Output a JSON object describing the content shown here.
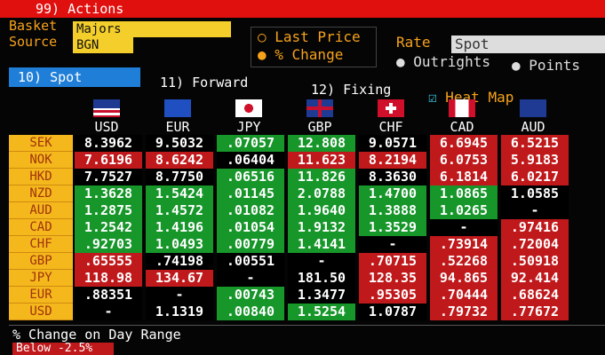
{
  "header": {
    "actions": "99) Actions",
    "basket_label": "Basket",
    "basket": "Majors",
    "source_label": "Source",
    "source": "BGN",
    "options": [
      "Last Price",
      "% Change"
    ],
    "rate_label": "Rate",
    "rate": "Spot",
    "rate_options": [
      "Outrights",
      "Points"
    ]
  },
  "tabs": [
    "10) Spot",
    "11) Forward",
    "12) Fixing"
  ],
  "heat_map_label": "Heat Map",
  "table": {
    "columns": [
      "USD",
      "EUR",
      "JPY",
      "GBP",
      "CHF",
      "CAD",
      "AUD"
    ],
    "rows": [
      {
        "label": "SEK",
        "cells": [
          "8.3962",
          "9.5032",
          ".07057",
          "12.808",
          "9.0571",
          "6.6945",
          "6.5215"
        ],
        "colors": [
          "#000000",
          "#000000",
          "#17962a",
          "#17962a",
          "#000000",
          "#c0191c",
          "#c0191c"
        ]
      },
      {
        "label": "NOK",
        "cells": [
          "7.6196",
          "8.6242",
          ".06404",
          "11.623",
          "8.2194",
          "6.0753",
          "5.9183"
        ],
        "colors": [
          "#c0191c",
          "#c0191c",
          "#000000",
          "#c0191c",
          "#c0191c",
          "#c0191c",
          "#c0191c"
        ]
      },
      {
        "label": "HKD",
        "cells": [
          "7.7527",
          "8.7750",
          ".06516",
          "11.826",
          "8.3630",
          "6.1814",
          "6.0217"
        ],
        "colors": [
          "#000000",
          "#000000",
          "#17962a",
          "#17962a",
          "#000000",
          "#c0191c",
          "#c0191c"
        ]
      },
      {
        "label": "NZD",
        "cells": [
          "1.3628",
          "1.5424",
          ".01145",
          "2.0788",
          "1.4700",
          "1.0865",
          "1.0585"
        ],
        "colors": [
          "#17962a",
          "#17962a",
          "#17962a",
          "#17962a",
          "#17962a",
          "#17962a",
          "#000000"
        ]
      },
      {
        "label": "AUD",
        "cells": [
          "1.2875",
          "1.4572",
          ".01082",
          "1.9640",
          "1.3888",
          "1.0265",
          "-"
        ],
        "colors": [
          "#17962a",
          "#17962a",
          "#17962a",
          "#17962a",
          "#17962a",
          "#17962a",
          "#000000"
        ]
      },
      {
        "label": "CAD",
        "cells": [
          "1.2542",
          "1.4196",
          ".01054",
          "1.9132",
          "1.3529",
          "-",
          ".97416"
        ],
        "colors": [
          "#17962a",
          "#17962a",
          "#17962a",
          "#17962a",
          "#17962a",
          "#000000",
          "#c0191c"
        ]
      },
      {
        "label": "CHF",
        "cells": [
          ".92703",
          "1.0493",
          ".00779",
          "1.4141",
          "-",
          ".73914",
          ".72004"
        ],
        "colors": [
          "#17962a",
          "#17962a",
          "#17962a",
          "#17962a",
          "#000000",
          "#c0191c",
          "#c0191c"
        ]
      },
      {
        "label": "GBP",
        "cells": [
          ".65555",
          ".74198",
          ".00551",
          "-",
          ".70715",
          ".52268",
          ".50918"
        ],
        "colors": [
          "#c0191c",
          "#000000",
          "#000000",
          "#000000",
          "#c0191c",
          "#c0191c",
          "#c0191c"
        ]
      },
      {
        "label": "JPY",
        "cells": [
          "118.98",
          "134.67",
          "-",
          "181.50",
          "128.35",
          "94.865",
          "92.414"
        ],
        "colors": [
          "#c0191c",
          "#c0191c",
          "#000000",
          "#000000",
          "#c0191c",
          "#c0191c",
          "#c0191c"
        ]
      },
      {
        "label": "EUR",
        "cells": [
          ".88351",
          "-",
          ".00743",
          "1.3477",
          ".95305",
          ".70444",
          ".68624"
        ],
        "colors": [
          "#000000",
          "#000000",
          "#17962a",
          "#000000",
          "#c0191c",
          "#c0191c",
          "#c0191c"
        ]
      },
      {
        "label": "USD",
        "cells": [
          "-",
          "1.1319",
          ".00840",
          "1.5254",
          "1.0787",
          ".79732",
          ".77672"
        ],
        "colors": [
          "#000000",
          "#000000",
          "#17962a",
          "#17962a",
          "#000000",
          "#c0191c",
          "#c0191c"
        ]
      }
    ]
  },
  "footer": {
    "title": "% Change on Day Range",
    "legend": "Below -2.5%"
  }
}
